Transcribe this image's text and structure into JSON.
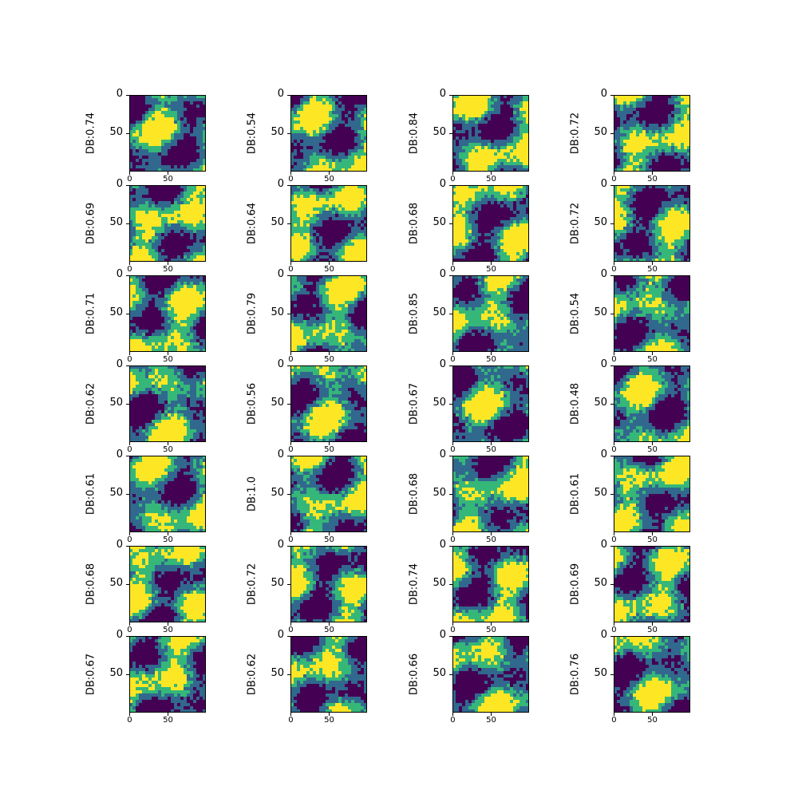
{
  "chart_data": {
    "type": "heatmap",
    "rows": 7,
    "cols": 4,
    "colormap": [
      "#440154",
      "#31688e",
      "#35b779",
      "#fde725"
    ],
    "x_ticks": [
      "0",
      "50"
    ],
    "y_ticks": [
      "0",
      "50"
    ],
    "panels": [
      {
        "label": "DB:0.74"
      },
      {
        "label": "DB:0.54"
      },
      {
        "label": "DB:0.84"
      },
      {
        "label": "DB:0.72"
      },
      {
        "label": "DB:0.69"
      },
      {
        "label": "DB:0.64"
      },
      {
        "label": "DB:0.68"
      },
      {
        "label": "DB:0.72"
      },
      {
        "label": "DB:0.71"
      },
      {
        "label": "DB:0.79"
      },
      {
        "label": "DB:0.85"
      },
      {
        "label": "DB:0.54"
      },
      {
        "label": "DB:0.62"
      },
      {
        "label": "DB:0.56"
      },
      {
        "label": "DB:0.67"
      },
      {
        "label": "DB:0.48"
      },
      {
        "label": "DB:0.61"
      },
      {
        "label": "DB:1.0"
      },
      {
        "label": "DB:0.68"
      },
      {
        "label": "DB:0.61"
      },
      {
        "label": "DB:0.68"
      },
      {
        "label": "DB:0.72"
      },
      {
        "label": "DB:0.74"
      },
      {
        "label": "DB:0.69"
      },
      {
        "label": "DB:0.67"
      },
      {
        "label": "DB:0.62"
      },
      {
        "label": "DB:0.66"
      },
      {
        "label": "DB:0.76"
      }
    ]
  }
}
